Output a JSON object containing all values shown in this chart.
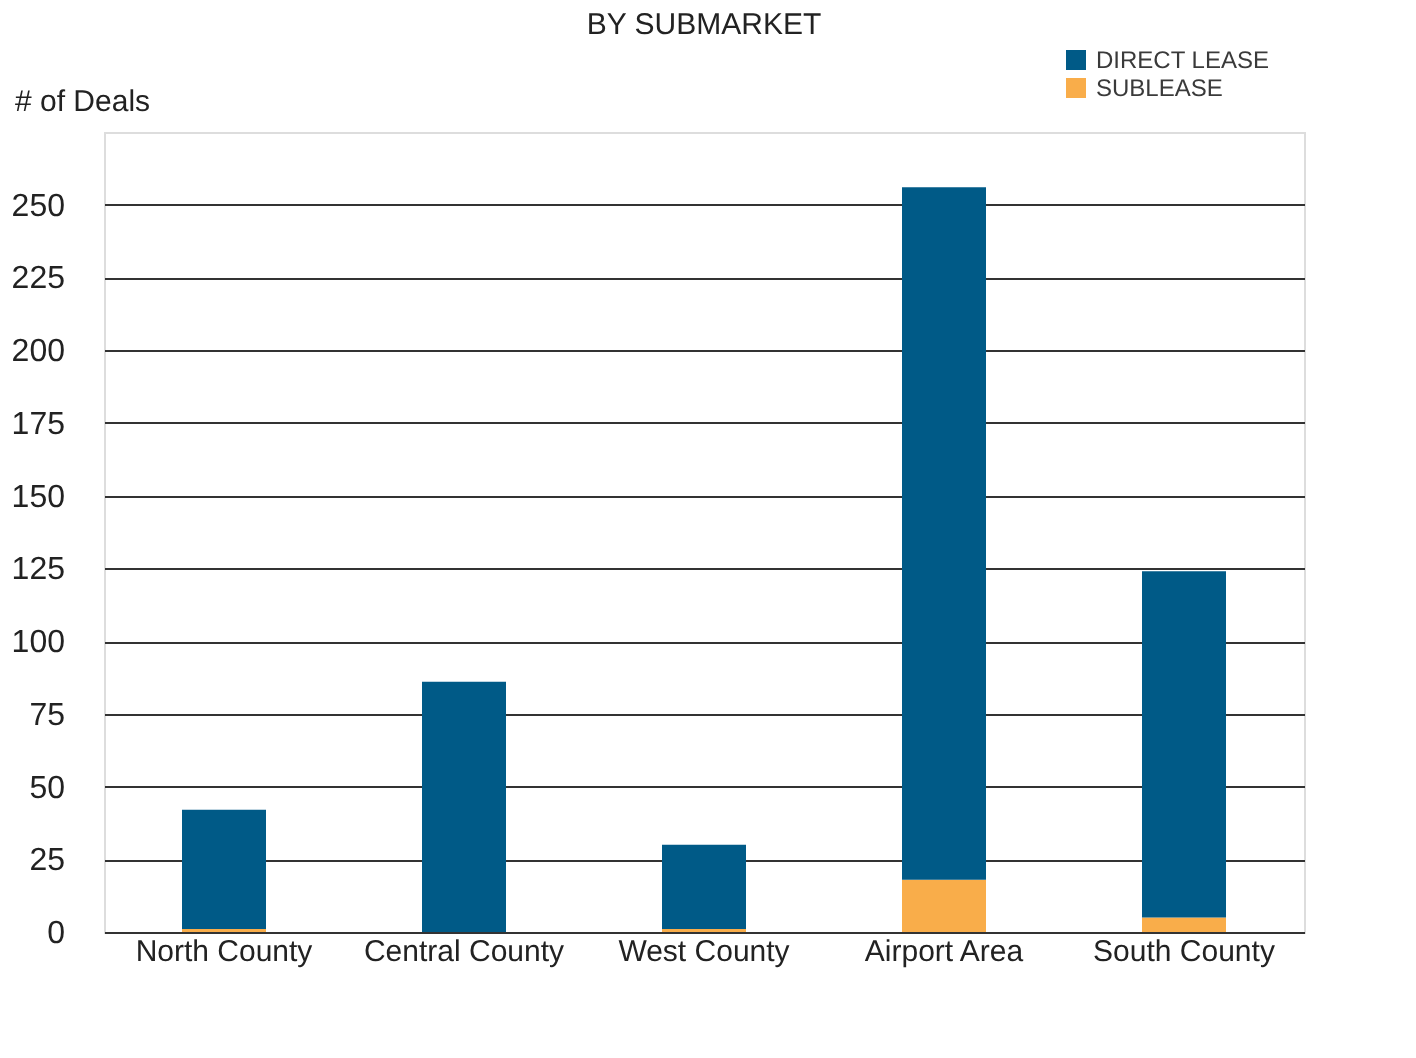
{
  "chart_data": {
    "type": "bar",
    "title": "BY SUBMARKET",
    "ylabel": "# of Deals",
    "categories": [
      "North County",
      "Central County",
      "West County",
      "Airport Area",
      "South County"
    ],
    "series": [
      {
        "name": "SUBLEASE",
        "color": "#f9ad4a",
        "values": [
          1,
          0,
          1,
          18,
          5
        ]
      },
      {
        "name": "DIRECT LEASE",
        "color": "#005a87",
        "values": [
          41,
          86,
          29,
          238,
          119
        ]
      }
    ],
    "stacked": true,
    "ylim": [
      0,
      275
    ],
    "yticks": [
      0,
      25,
      50,
      75,
      100,
      125,
      150,
      175,
      200,
      225,
      250
    ],
    "grid": "y",
    "legend": "top right"
  }
}
